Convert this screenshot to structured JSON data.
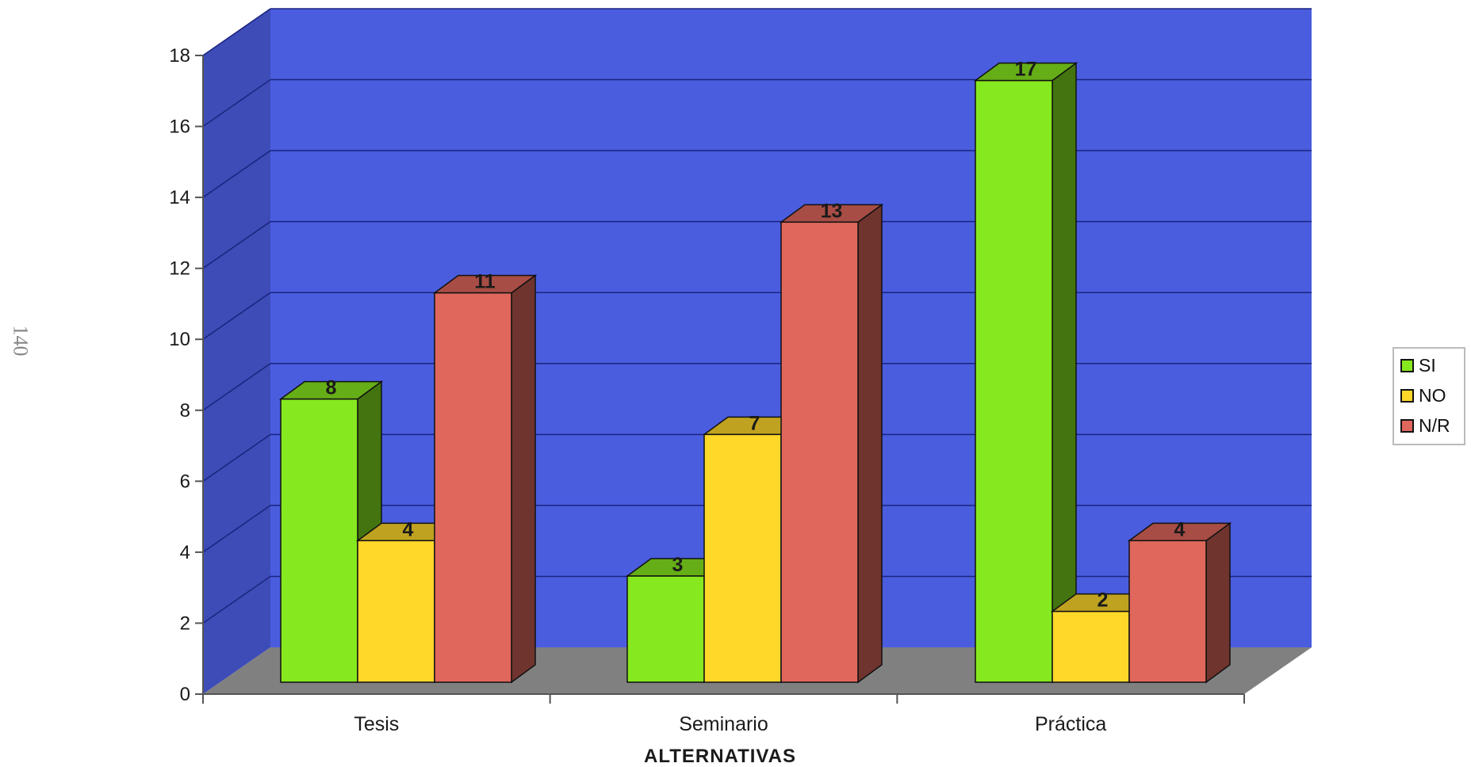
{
  "page_number": "140",
  "chart_data": {
    "type": "bar",
    "categories": [
      "Tesis",
      "Seminario",
      "Práctica"
    ],
    "series": [
      {
        "name": "SI",
        "values": [
          8,
          3,
          17
        ],
        "color": "#86e81e"
      },
      {
        "name": "NO",
        "values": [
          4,
          7,
          2
        ],
        "color": "#ffd82a"
      },
      {
        "name": "N/R",
        "values": [
          11,
          13,
          4
        ],
        "color": "#e0675c"
      }
    ],
    "xlabel": "ALTERNATIVAS",
    "ylabel": "",
    "ylim": [
      0,
      18
    ],
    "yticks": [
      "0",
      "2",
      "4",
      "6",
      "8",
      "10",
      "12",
      "14",
      "16",
      "18"
    ],
    "grid": true,
    "legend_position": "right",
    "background_color": "#4a5ddf",
    "floor_color": "#808080"
  }
}
